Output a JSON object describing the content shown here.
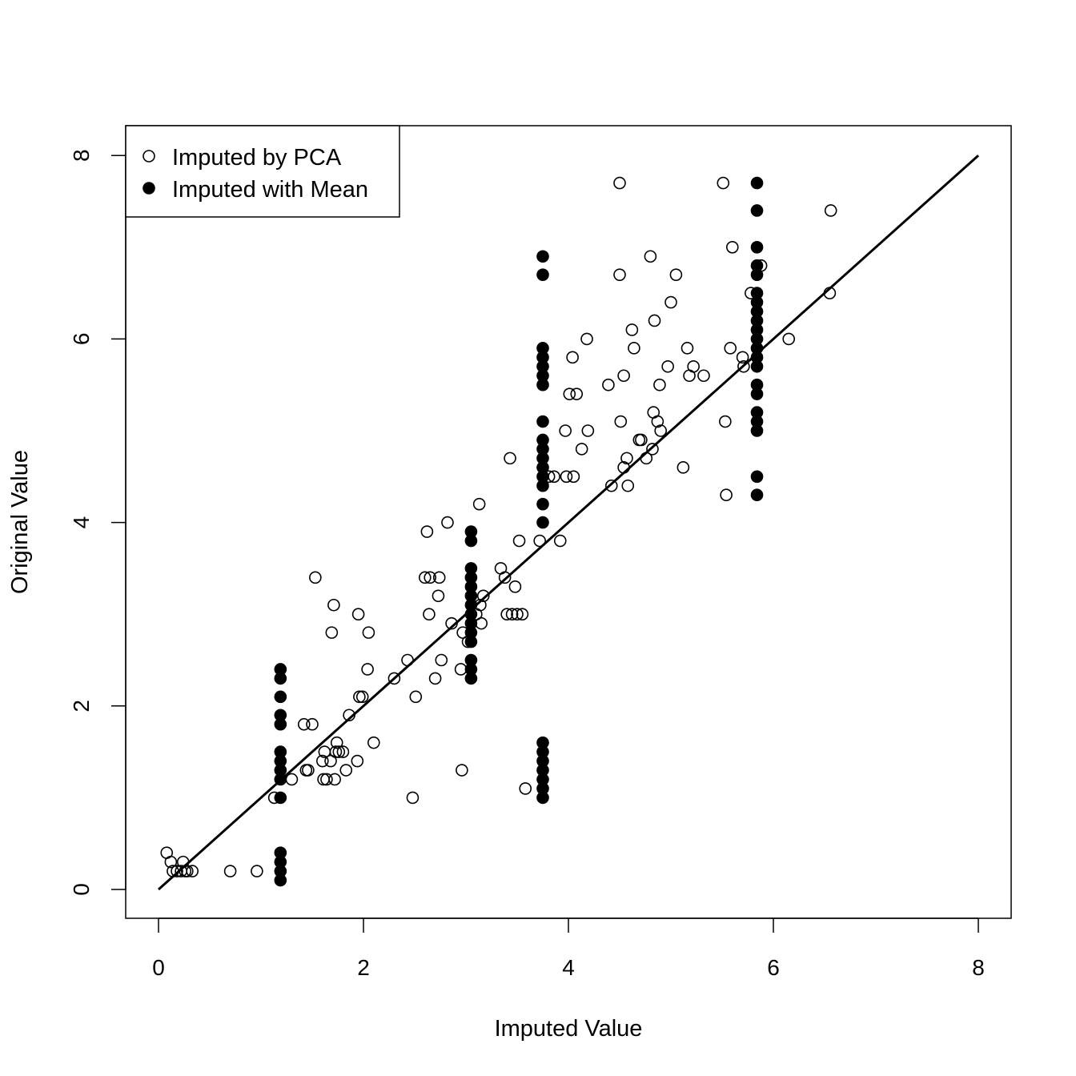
{
  "chart_data": {
    "type": "scatter",
    "title": "",
    "xlabel": "Imputed Value",
    "ylabel": "Original Value",
    "xlim": [
      -0.3,
      8.3
    ],
    "ylim": [
      -0.3,
      8.3
    ],
    "x_ticks": [
      "0",
      "2",
      "4",
      "6",
      "8"
    ],
    "y_ticks": [
      "0",
      "2",
      "4",
      "6",
      "8"
    ],
    "grid": false,
    "legend_position": "top-left",
    "reference_line": {
      "from": [
        0,
        0
      ],
      "to": [
        8,
        8
      ]
    },
    "series": [
      {
        "name": "Imputed by PCA",
        "marker": "open-circle",
        "points": [
          [
            0.08,
            0.4
          ],
          [
            0.12,
            0.3
          ],
          [
            0.14,
            0.2
          ],
          [
            0.18,
            0.2
          ],
          [
            0.22,
            0.2
          ],
          [
            0.24,
            0.3
          ],
          [
            0.26,
            0.2
          ],
          [
            0.28,
            0.2
          ],
          [
            0.33,
            0.2
          ],
          [
            0.7,
            0.2
          ],
          [
            0.96,
            0.2
          ],
          [
            1.13,
            1.0
          ],
          [
            1.3,
            1.2
          ],
          [
            1.42,
            1.8
          ],
          [
            1.44,
            1.3
          ],
          [
            1.46,
            1.3
          ],
          [
            1.5,
            1.8
          ],
          [
            1.53,
            3.4
          ],
          [
            1.6,
            1.4
          ],
          [
            1.61,
            1.2
          ],
          [
            1.62,
            1.5
          ],
          [
            1.64,
            1.2
          ],
          [
            1.68,
            1.4
          ],
          [
            1.69,
            2.8
          ],
          [
            1.71,
            3.1
          ],
          [
            1.72,
            1.2
          ],
          [
            1.73,
            1.5
          ],
          [
            1.74,
            1.6
          ],
          [
            1.76,
            1.5
          ],
          [
            1.8,
            1.5
          ],
          [
            1.83,
            1.3
          ],
          [
            1.86,
            1.9
          ],
          [
            1.94,
            1.4
          ],
          [
            1.95,
            3.0
          ],
          [
            1.96,
            2.1
          ],
          [
            1.99,
            2.1
          ],
          [
            2.04,
            2.4
          ],
          [
            2.05,
            2.8
          ],
          [
            2.1,
            1.6
          ],
          [
            2.3,
            2.3
          ],
          [
            2.43,
            2.5
          ],
          [
            2.48,
            1.0
          ],
          [
            2.51,
            2.1
          ],
          [
            2.6,
            3.4
          ],
          [
            2.62,
            3.9
          ],
          [
            2.64,
            3.0
          ],
          [
            2.65,
            3.4
          ],
          [
            2.7,
            2.3
          ],
          [
            2.73,
            3.2
          ],
          [
            2.74,
            3.4
          ],
          [
            2.76,
            2.5
          ],
          [
            2.82,
            4.0
          ],
          [
            2.86,
            2.9
          ],
          [
            2.95,
            2.4
          ],
          [
            2.96,
            1.3
          ],
          [
            2.97,
            2.8
          ],
          [
            3.02,
            2.7
          ],
          [
            3.1,
            3.0
          ],
          [
            3.13,
            4.2
          ],
          [
            3.14,
            3.1
          ],
          [
            3.15,
            2.9
          ],
          [
            3.17,
            3.2
          ],
          [
            3.34,
            3.5
          ],
          [
            3.38,
            3.4
          ],
          [
            3.4,
            3.0
          ],
          [
            3.45,
            3.0
          ],
          [
            3.48,
            3.3
          ],
          [
            3.5,
            3.0
          ],
          [
            3.52,
            3.8
          ],
          [
            3.55,
            3.0
          ],
          [
            3.58,
            1.1
          ],
          [
            3.43,
            4.7
          ],
          [
            3.72,
            3.8
          ],
          [
            3.81,
            4.5
          ],
          [
            3.86,
            4.5
          ],
          [
            3.92,
            3.8
          ],
          [
            3.97,
            5.0
          ],
          [
            3.98,
            4.5
          ],
          [
            4.01,
            5.4
          ],
          [
            4.04,
            5.8
          ],
          [
            4.05,
            4.5
          ],
          [
            4.08,
            5.4
          ],
          [
            4.13,
            4.8
          ],
          [
            4.18,
            6.0
          ],
          [
            4.19,
            5.0
          ],
          [
            4.39,
            5.5
          ],
          [
            4.42,
            4.4
          ],
          [
            4.5,
            7.7
          ],
          [
            4.5,
            6.7
          ],
          [
            4.51,
            5.1
          ],
          [
            4.54,
            4.6
          ],
          [
            4.54,
            5.6
          ],
          [
            4.57,
            4.7
          ],
          [
            4.58,
            4.4
          ],
          [
            4.62,
            6.1
          ],
          [
            4.64,
            5.9
          ],
          [
            4.69,
            4.9
          ],
          [
            4.71,
            4.9
          ],
          [
            4.76,
            4.7
          ],
          [
            4.8,
            6.9
          ],
          [
            4.82,
            4.8
          ],
          [
            4.83,
            5.2
          ],
          [
            4.84,
            6.2
          ],
          [
            4.87,
            5.1
          ],
          [
            4.89,
            5.5
          ],
          [
            4.9,
            5.0
          ],
          [
            4.97,
            5.7
          ],
          [
            5.0,
            6.4
          ],
          [
            5.05,
            6.7
          ],
          [
            5.12,
            4.6
          ],
          [
            5.16,
            5.9
          ],
          [
            5.18,
            5.6
          ],
          [
            5.22,
            5.7
          ],
          [
            5.32,
            5.6
          ],
          [
            5.51,
            7.7
          ],
          [
            5.53,
            5.1
          ],
          [
            5.54,
            4.3
          ],
          [
            5.58,
            5.9
          ],
          [
            5.6,
            7.0
          ],
          [
            5.7,
            5.8
          ],
          [
            5.71,
            5.7
          ],
          [
            5.78,
            6.5
          ],
          [
            5.88,
            6.8
          ],
          [
            6.15,
            6.0
          ],
          [
            6.55,
            6.5
          ],
          [
            6.56,
            7.4
          ]
        ]
      },
      {
        "name": "Imputed with Mean",
        "marker": "filled-circle",
        "points": [
          [
            1.19,
            0.1
          ],
          [
            1.19,
            0.2
          ],
          [
            1.19,
            0.3
          ],
          [
            1.19,
            0.4
          ],
          [
            1.19,
            1.0
          ],
          [
            1.19,
            1.2
          ],
          [
            1.19,
            1.3
          ],
          [
            1.19,
            1.4
          ],
          [
            1.19,
            1.5
          ],
          [
            1.19,
            1.8
          ],
          [
            1.19,
            1.9
          ],
          [
            1.19,
            2.1
          ],
          [
            1.19,
            2.3
          ],
          [
            1.19,
            2.4
          ],
          [
            3.05,
            2.3
          ],
          [
            3.05,
            2.4
          ],
          [
            3.05,
            2.5
          ],
          [
            3.05,
            2.7
          ],
          [
            3.05,
            2.8
          ],
          [
            3.05,
            2.9
          ],
          [
            3.05,
            3.0
          ],
          [
            3.05,
            3.1
          ],
          [
            3.05,
            3.2
          ],
          [
            3.05,
            3.3
          ],
          [
            3.05,
            3.4
          ],
          [
            3.05,
            3.5
          ],
          [
            3.05,
            3.8
          ],
          [
            3.05,
            3.9
          ],
          [
            3.75,
            1.0
          ],
          [
            3.75,
            1.1
          ],
          [
            3.75,
            1.2
          ],
          [
            3.75,
            1.3
          ],
          [
            3.75,
            1.4
          ],
          [
            3.75,
            1.5
          ],
          [
            3.75,
            1.6
          ],
          [
            3.75,
            4.0
          ],
          [
            3.75,
            4.2
          ],
          [
            3.75,
            4.4
          ],
          [
            3.75,
            4.5
          ],
          [
            3.75,
            4.6
          ],
          [
            3.75,
            4.7
          ],
          [
            3.75,
            4.8
          ],
          [
            3.75,
            4.9
          ],
          [
            3.75,
            5.1
          ],
          [
            3.75,
            5.5
          ],
          [
            3.75,
            5.6
          ],
          [
            3.75,
            5.7
          ],
          [
            3.75,
            5.8
          ],
          [
            3.75,
            5.9
          ],
          [
            3.75,
            6.7
          ],
          [
            3.75,
            6.9
          ],
          [
            5.84,
            4.3
          ],
          [
            5.84,
            4.5
          ],
          [
            5.84,
            5.0
          ],
          [
            5.84,
            5.1
          ],
          [
            5.84,
            5.2
          ],
          [
            5.84,
            5.4
          ],
          [
            5.84,
            5.5
          ],
          [
            5.84,
            5.7
          ],
          [
            5.84,
            5.8
          ],
          [
            5.84,
            5.9
          ],
          [
            5.84,
            6.0
          ],
          [
            5.84,
            6.1
          ],
          [
            5.84,
            6.2
          ],
          [
            5.84,
            6.3
          ],
          [
            5.84,
            6.4
          ],
          [
            5.84,
            6.5
          ],
          [
            5.84,
            6.7
          ],
          [
            5.84,
            6.8
          ],
          [
            5.84,
            7.0
          ],
          [
            5.84,
            7.4
          ],
          [
            5.84,
            7.7
          ]
        ]
      }
    ]
  }
}
